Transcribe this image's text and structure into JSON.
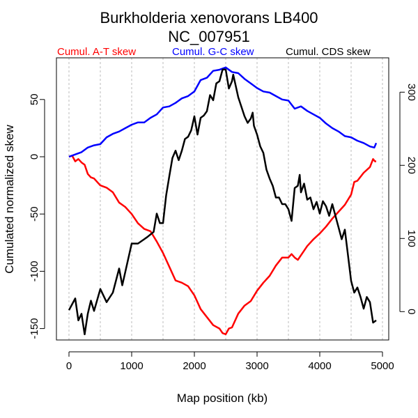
{
  "chart_data": {
    "type": "line",
    "title": "Burkholderia xenovorans LB400",
    "subtitle": "NC_007951",
    "xlabel": "Map position (kb)",
    "ylabel": "Cumulated normalized skew",
    "xlim": [
      0,
      5000
    ],
    "ylim_left": [
      -165,
      81
    ],
    "ylim_right": [
      -40,
      335
    ],
    "xticks": [
      0,
      1000,
      2000,
      3000,
      4000,
      5000
    ],
    "xtick_labels": [
      "0",
      "1000",
      "2000",
      "3000",
      "4000",
      "5000"
    ],
    "grid_x": [
      0,
      500,
      1000,
      1500,
      2000,
      2500,
      3000,
      3500,
      4000,
      4500,
      5000
    ],
    "yticks_left": [
      50,
      0,
      -50,
      -100,
      -150
    ],
    "ytick_labels_left": [
      "50",
      "0",
      "-50",
      "-100",
      "-150"
    ],
    "yticks_right": [
      300,
      200,
      100,
      0
    ],
    "ytick_labels_right": [
      "300",
      "200",
      "100",
      "0"
    ],
    "legend_placement": "top",
    "series": [
      {
        "name": "Cumul. A-T skew",
        "color": "#ff0000",
        "axis": "left",
        "x": [
          0,
          50,
          100,
          150,
          200,
          250,
          300,
          350,
          400,
          450,
          500,
          600,
          700,
          800,
          850,
          900,
          1000,
          1100,
          1200,
          1300,
          1400,
          1500,
          1600,
          1700,
          1800,
          1900,
          2000,
          2100,
          2200,
          2300,
          2400,
          2450,
          2500,
          2550,
          2600,
          2700,
          2800,
          2900,
          3000,
          3100,
          3200,
          3300,
          3400,
          3500,
          3550,
          3600,
          3650,
          3700,
          3800,
          3900,
          4000,
          4100,
          4200,
          4300,
          4400,
          4500,
          4550,
          4600,
          4700,
          4800,
          4850,
          4880,
          4900
        ],
        "y": [
          0,
          1,
          -4,
          -2,
          -5,
          -7,
          -15,
          -18,
          -19,
          -22,
          -25,
          -27,
          -31,
          -40,
          -42,
          -44,
          -50,
          -58,
          -63,
          -65,
          -74,
          -84,
          -96,
          -108,
          -110,
          -113,
          -121,
          -133,
          -140,
          -147,
          -150,
          -154,
          -155,
          -150,
          -149,
          -137,
          -130,
          -126,
          -117,
          -110,
          -104,
          -95,
          -88,
          -88,
          -85,
          -88,
          -90,
          -86,
          -78,
          -72,
          -67,
          -61,
          -54,
          -48,
          -42,
          -33,
          -22,
          -21,
          -14,
          -9,
          -2,
          -4,
          -4
        ]
      },
      {
        "name": "Cumul. G-C skew",
        "color": "#0000ff",
        "axis": "left",
        "x": [
          0,
          100,
          200,
          300,
          400,
          500,
          600,
          700,
          800,
          900,
          1000,
          1100,
          1200,
          1300,
          1400,
          1500,
          1600,
          1700,
          1800,
          1900,
          2000,
          2100,
          2200,
          2300,
          2400,
          2450,
          2500,
          2600,
          2700,
          2800,
          2900,
          3000,
          3100,
          3200,
          3300,
          3400,
          3500,
          3600,
          3700,
          3800,
          3900,
          4000,
          4100,
          4200,
          4300,
          4400,
          4500,
          4600,
          4700,
          4800,
          4870,
          4900
        ],
        "y": [
          0,
          2,
          4,
          8,
          10,
          11,
          17,
          20,
          22,
          25,
          28,
          30,
          30,
          34,
          37,
          43,
          44,
          47,
          51,
          53,
          57,
          67,
          69,
          75,
          76,
          77,
          78,
          74,
          73,
          68,
          64,
          60,
          57,
          56,
          53,
          50,
          49,
          42,
          44,
          40,
          37,
          34,
          29,
          25,
          22,
          18,
          17,
          14,
          12,
          9,
          8,
          12
        ]
      },
      {
        "name": "Cumul. CDS skew",
        "color": "#000000",
        "axis": "right",
        "x": [
          0,
          100,
          150,
          200,
          250,
          300,
          350,
          400,
          500,
          600,
          700,
          800,
          850,
          900,
          950,
          1000,
          1100,
          1200,
          1250,
          1350,
          1400,
          1450,
          1500,
          1550,
          1600,
          1650,
          1700,
          1750,
          1800,
          1850,
          1900,
          1950,
          2000,
          2050,
          2100,
          2150,
          2200,
          2250,
          2300,
          2350,
          2400,
          2450,
          2500,
          2550,
          2600,
          2620,
          2700,
          2800,
          2850,
          2900,
          2930,
          2950,
          3000,
          3050,
          3100,
          3150,
          3200,
          3250,
          3300,
          3350,
          3400,
          3450,
          3500,
          3550,
          3600,
          3650,
          3680,
          3700,
          3750,
          3800,
          3850,
          3900,
          3950,
          4000,
          4050,
          4100,
          4150,
          4200,
          4250,
          4300,
          4350,
          4400,
          4450,
          4500,
          4550,
          4600,
          4650,
          4700,
          4750,
          4800,
          4850,
          4900
        ],
        "y": [
          2,
          18,
          -12,
          -3,
          -31,
          -3,
          15,
          1,
          31,
          13,
          26,
          59,
          36,
          55,
          74,
          93,
          93,
          99,
          102,
          109,
          134,
          121,
          121,
          159,
          185,
          210,
          220,
          207,
          220,
          236,
          239,
          248,
          267,
          242,
          265,
          268,
          274,
          296,
          289,
          312,
          315,
          331,
          331,
          305,
          315,
          324,
          293,
          267,
          258,
          264,
          272,
          254,
          242,
          226,
          217,
          194,
          182,
          172,
          156,
          156,
          147,
          147,
          140,
          124,
          169,
          172,
          187,
          163,
          175,
          153,
          156,
          140,
          150,
          134,
          151,
          144,
          131,
          147,
          131,
          115,
          99,
          112,
          77,
          42,
          26,
          33,
          20,
          4,
          20,
          13,
          -15,
          -12
        ]
      }
    ]
  }
}
